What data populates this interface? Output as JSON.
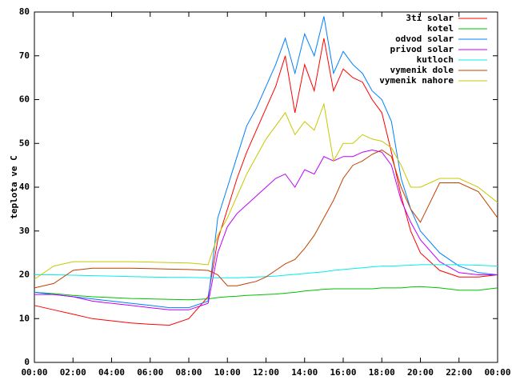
{
  "chart_data": {
    "type": "line",
    "y_label": "teplota ve C",
    "x": [
      0,
      1,
      2,
      3,
      4,
      5,
      6,
      7,
      8,
      9,
      9.5,
      10,
      10.5,
      11,
      11.5,
      12,
      12.5,
      13,
      13.5,
      14,
      14.5,
      15,
      15.5,
      16,
      16.5,
      17,
      17.5,
      18,
      18.5,
      19,
      19.5,
      20,
      21,
      22,
      23,
      24
    ],
    "xlim": [
      0,
      24
    ],
    "xticks": [
      {
        "value": 0,
        "label": "00:00"
      },
      {
        "value": 2,
        "label": "02:00"
      },
      {
        "value": 4,
        "label": "04:00"
      },
      {
        "value": 6,
        "label": "06:00"
      },
      {
        "value": 8,
        "label": "08:00"
      },
      {
        "value": 10,
        "label": "10:00"
      },
      {
        "value": 12,
        "label": "12:00"
      },
      {
        "value": 14,
        "label": "14:00"
      },
      {
        "value": 16,
        "label": "16:00"
      },
      {
        "value": 18,
        "label": "18:00"
      },
      {
        "value": 20,
        "label": "20:00"
      },
      {
        "value": 22,
        "label": "22:00"
      },
      {
        "value": 24,
        "label": "00:00"
      }
    ],
    "ylim": [
      0,
      80
    ],
    "yticks": [
      0,
      10,
      20,
      30,
      40,
      50,
      60,
      70,
      80
    ],
    "legend": "top-right",
    "series": [
      {
        "name": "3ti solar",
        "color": "#ff0000",
        "values": [
          13,
          12,
          11,
          10,
          9.5,
          9,
          8.7,
          8.5,
          10,
          15,
          28,
          35,
          42,
          48,
          53,
          58,
          63,
          70,
          57,
          68,
          62,
          74,
          62,
          67,
          65,
          64,
          60,
          57,
          48,
          38,
          30,
          25,
          21,
          19.5,
          19.5,
          20
        ]
      },
      {
        "name": "kotel",
        "color": "#00c000",
        "values": [
          16,
          15.7,
          15.3,
          15,
          14.8,
          14.6,
          14.5,
          14.4,
          14.3,
          14.5,
          14.8,
          15,
          15.1,
          15.3,
          15.4,
          15.5,
          15.6,
          15.8,
          16,
          16.3,
          16.5,
          16.7,
          16.8,
          16.8,
          16.8,
          16.8,
          16.8,
          17,
          17,
          17,
          17.2,
          17.3,
          17,
          16.5,
          16.5,
          17
        ]
      },
      {
        "name": "odvod solar",
        "color": "#0080ff",
        "values": [
          16,
          15.5,
          15,
          14.5,
          14,
          13.5,
          13,
          12.5,
          12.5,
          14,
          33,
          40,
          47,
          54,
          58,
          63,
          68,
          74,
          66,
          75,
          70,
          79,
          66,
          71,
          68,
          66,
          62,
          60,
          55,
          42,
          35,
          30,
          25,
          22,
          20.5,
          20
        ]
      },
      {
        "name": "privod solar",
        "color": "#c000ff",
        "values": [
          15.5,
          15.5,
          15,
          14,
          13.5,
          13,
          12.5,
          12,
          12,
          13.5,
          25,
          31,
          34,
          36,
          38,
          40,
          42,
          43,
          40,
          44,
          43,
          47,
          46,
          47,
          47,
          48,
          48.5,
          48,
          45,
          37,
          32,
          28,
          23,
          20.5,
          20,
          20
        ]
      },
      {
        "name": "kutloch",
        "color": "#00eeee",
        "values": [
          20,
          20,
          19.9,
          19.8,
          19.7,
          19.6,
          19.5,
          19.4,
          19.4,
          19.3,
          19.3,
          19.3,
          19.3,
          19.4,
          19.5,
          19.6,
          19.7,
          19.9,
          20.1,
          20.3,
          20.5,
          20.7,
          21,
          21.2,
          21.4,
          21.6,
          21.8,
          22,
          22,
          22.1,
          22.2,
          22.3,
          22.3,
          22.3,
          22.2,
          22
        ]
      },
      {
        "name": "vymenik dole",
        "color": "#c04000",
        "values": [
          17,
          18,
          21,
          21.5,
          21.5,
          21.5,
          21.4,
          21.3,
          21.2,
          21,
          20,
          17.5,
          17.5,
          18,
          18.5,
          19.5,
          21,
          22.5,
          23.5,
          26,
          29,
          33,
          37,
          42,
          45,
          46,
          47.5,
          48.5,
          47,
          40,
          35,
          32,
          41,
          41,
          39,
          33
        ]
      },
      {
        "name": "vymenik nahore",
        "color": "#c8c800",
        "values": [
          19,
          22,
          23,
          23,
          23,
          23,
          22.9,
          22.8,
          22.7,
          22.3,
          29,
          33,
          38,
          43,
          47,
          51,
          54,
          57,
          52,
          55,
          53,
          59,
          46,
          50,
          50,
          52,
          51,
          50.5,
          49,
          45,
          40,
          40,
          42,
          42,
          40,
          36.5
        ]
      }
    ]
  }
}
